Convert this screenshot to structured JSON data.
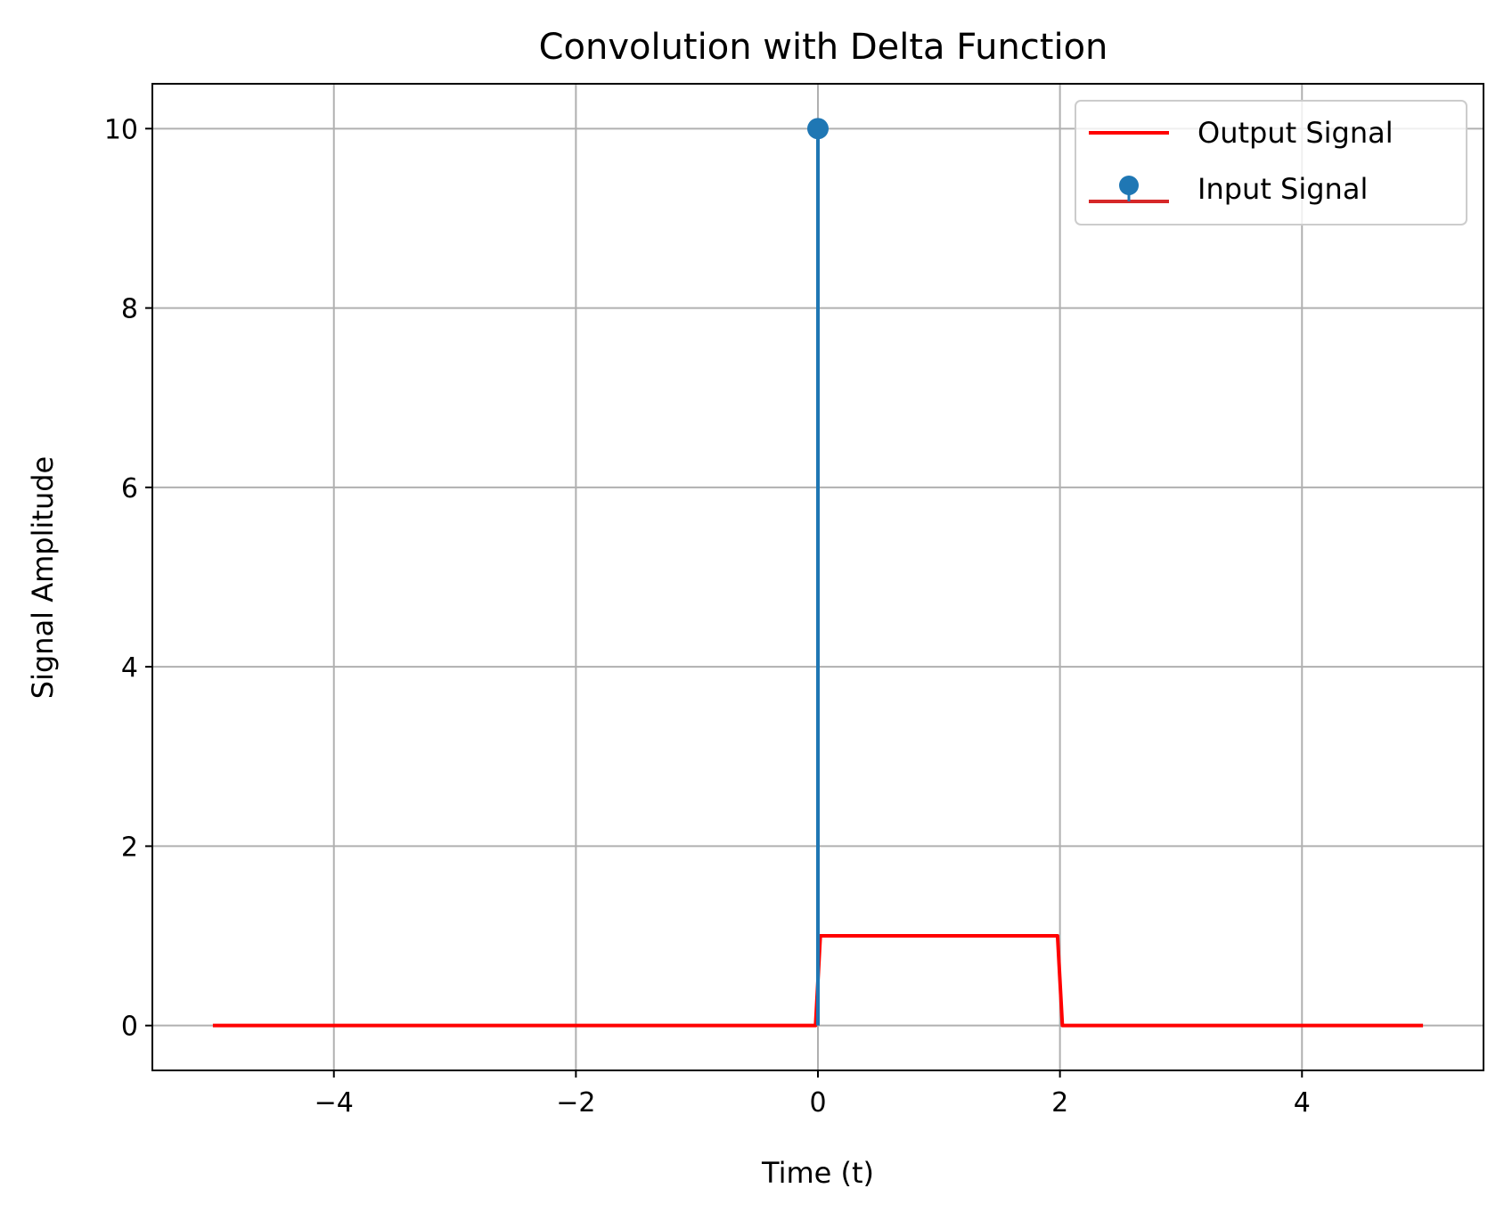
{
  "colors": {
    "output_line": "#ff0000",
    "input_stem": "#1f77b4",
    "input_baseline": "#d62728",
    "grid": "#b0b0b0",
    "axes": "#000000",
    "background": "#ffffff"
  },
  "chart_data": {
    "type": "line",
    "title": "Convolution with Delta Function",
    "xlabel": "Time (t)",
    "ylabel": "Signal Amplitude",
    "xlim": [
      -5.5,
      5.5
    ],
    "ylim": [
      -0.5,
      10.5
    ],
    "grid": true,
    "legend_placement": "top-right",
    "x_ticks": [
      {
        "value": -4,
        "label": "−4"
      },
      {
        "value": -2,
        "label": "−2"
      },
      {
        "value": 0,
        "label": "0"
      },
      {
        "value": 2,
        "label": "2"
      },
      {
        "value": 4,
        "label": "4"
      }
    ],
    "y_ticks": [
      {
        "value": 0,
        "label": "0"
      },
      {
        "value": 2,
        "label": "2"
      },
      {
        "value": 4,
        "label": "4"
      },
      {
        "value": 6,
        "label": "6"
      },
      {
        "value": 8,
        "label": "8"
      },
      {
        "value": 10,
        "label": "10"
      }
    ],
    "series": [
      {
        "name": "Output Signal",
        "kind": "line",
        "color": "#ff0000",
        "x": [
          -5,
          -0.02,
          0.02,
          1.98,
          2.02,
          5
        ],
        "y": [
          0,
          0,
          1,
          1,
          0,
          0
        ]
      },
      {
        "name": "Input Signal",
        "kind": "stem",
        "color": "#1f77b4",
        "baseline_color": "#d62728",
        "x": [
          0
        ],
        "y": [
          10
        ]
      }
    ]
  }
}
